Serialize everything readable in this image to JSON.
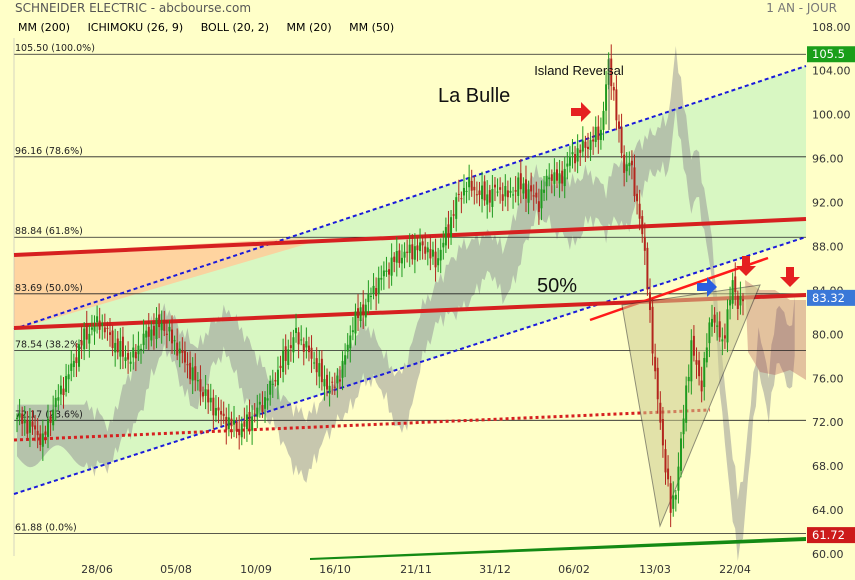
{
  "header": {
    "title": "SCHNEIDER ELECTRIC - abcbourse.com",
    "period": "1 AN - JOUR"
  },
  "legend": [
    {
      "label": "MM (200)",
      "color": "#1a1adb"
    },
    {
      "label": "ICHIMOKU (26, 9)",
      "color": "#1a1adb"
    },
    {
      "label": "BOLL (20, 2)",
      "color": "#f0a040"
    },
    {
      "label": "MM (20)",
      "color": "#1a8a1a"
    },
    {
      "label": "MM (50)",
      "color": "#cc1111"
    }
  ],
  "chart_data": {
    "type": "candlestick",
    "ylim": [
      60,
      108.8
    ],
    "y_ticks": [
      60,
      64,
      68,
      72,
      76,
      80,
      84,
      88,
      92,
      96,
      100,
      104,
      108
    ],
    "x_ticks": [
      "28/06",
      "05/08",
      "10/09",
      "16/10",
      "21/11",
      "31/12",
      "06/02",
      "13/03",
      "22/04"
    ],
    "price_badges": [
      {
        "label": "105.5",
        "value": 105.5,
        "color": "#1a9e1a"
      },
      {
        "label": "83.32",
        "value": 83.32,
        "color": "#3a78d8"
      },
      {
        "label": "61.72",
        "value": 61.72,
        "color": "#cc1a1a"
      }
    ],
    "fib_levels": [
      {
        "label": "105.50  (100.0%)",
        "value": 105.5
      },
      {
        "label": "96.16  (78.6%)",
        "value": 96.16
      },
      {
        "label": "88.84  (61.8%)",
        "value": 88.84
      },
      {
        "label": "83.69  (50.0%)",
        "value": 83.69
      },
      {
        "label": "78.54  (38.2%)",
        "value": 78.54
      },
      {
        "label": "72.17  (23.6%)",
        "value": 72.17
      },
      {
        "label": "61.88  (0.0%)",
        "value": 61.88
      }
    ],
    "annotations": [
      {
        "text": "Island Reversal"
      },
      {
        "text": "La Bulle"
      },
      {
        "text": "50%"
      }
    ],
    "series_anchors": [
      [
        0,
        72.4
      ],
      [
        6,
        71.5
      ],
      [
        10,
        70.3
      ],
      [
        14,
        73.3
      ],
      [
        20,
        76.4
      ],
      [
        26,
        79.8
      ],
      [
        32,
        81.2
      ],
      [
        38,
        79.0
      ],
      [
        44,
        77.6
      ],
      [
        50,
        80.0
      ],
      [
        56,
        81.0
      ],
      [
        62,
        78.8
      ],
      [
        68,
        76.3
      ],
      [
        74,
        74.0
      ],
      [
        80,
        72.3
      ],
      [
        86,
        71.3
      ],
      [
        90,
        72.2
      ],
      [
        96,
        74.0
      ],
      [
        102,
        77.2
      ],
      [
        108,
        80.0
      ],
      [
        114,
        78.0
      ],
      [
        118,
        76.0
      ],
      [
        122,
        75.0
      ],
      [
        126,
        77.0
      ],
      [
        130,
        81.0
      ],
      [
        134,
        82.4
      ],
      [
        138,
        84.0
      ],
      [
        142,
        85.5
      ],
      [
        146,
        86.8
      ],
      [
        150,
        87.3
      ],
      [
        154,
        87.8
      ],
      [
        158,
        88.0
      ],
      [
        162,
        86.5
      ],
      [
        166,
        89.0
      ],
      [
        170,
        92.0
      ],
      [
        174,
        93.6
      ],
      [
        178,
        93.0
      ],
      [
        182,
        92.5
      ],
      [
        186,
        93.2
      ],
      [
        190,
        92.6
      ],
      [
        194,
        93.6
      ],
      [
        198,
        93.0
      ],
      [
        202,
        92.0
      ],
      [
        206,
        94.6
      ],
      [
        210,
        94.0
      ],
      [
        214,
        96.0
      ],
      [
        218,
        96.8
      ],
      [
        222,
        97.5
      ],
      [
        226,
        98.6
      ],
      [
        229,
        104.5
      ],
      [
        231,
        102.0
      ],
      [
        233,
        98.0
      ],
      [
        235,
        95.0
      ],
      [
        237,
        96.0
      ],
      [
        239,
        93.0
      ],
      [
        241,
        91.0
      ],
      [
        243,
        87.0
      ],
      [
        245,
        82.0
      ],
      [
        247,
        76.0
      ],
      [
        249,
        72.0
      ],
      [
        251,
        68.0
      ],
      [
        253,
        64.0
      ],
      [
        255,
        66.0
      ],
      [
        257,
        70.0
      ],
      [
        259,
        75.0
      ],
      [
        261,
        79.0
      ],
      [
        263,
        77.0
      ],
      [
        265,
        75.5
      ],
      [
        267,
        79.0
      ],
      [
        269,
        82.0
      ],
      [
        271,
        80.5
      ],
      [
        273,
        79.0
      ],
      [
        275,
        82.0
      ],
      [
        277,
        84.5
      ],
      [
        279,
        83.0
      ],
      [
        281,
        83.3
      ]
    ]
  }
}
